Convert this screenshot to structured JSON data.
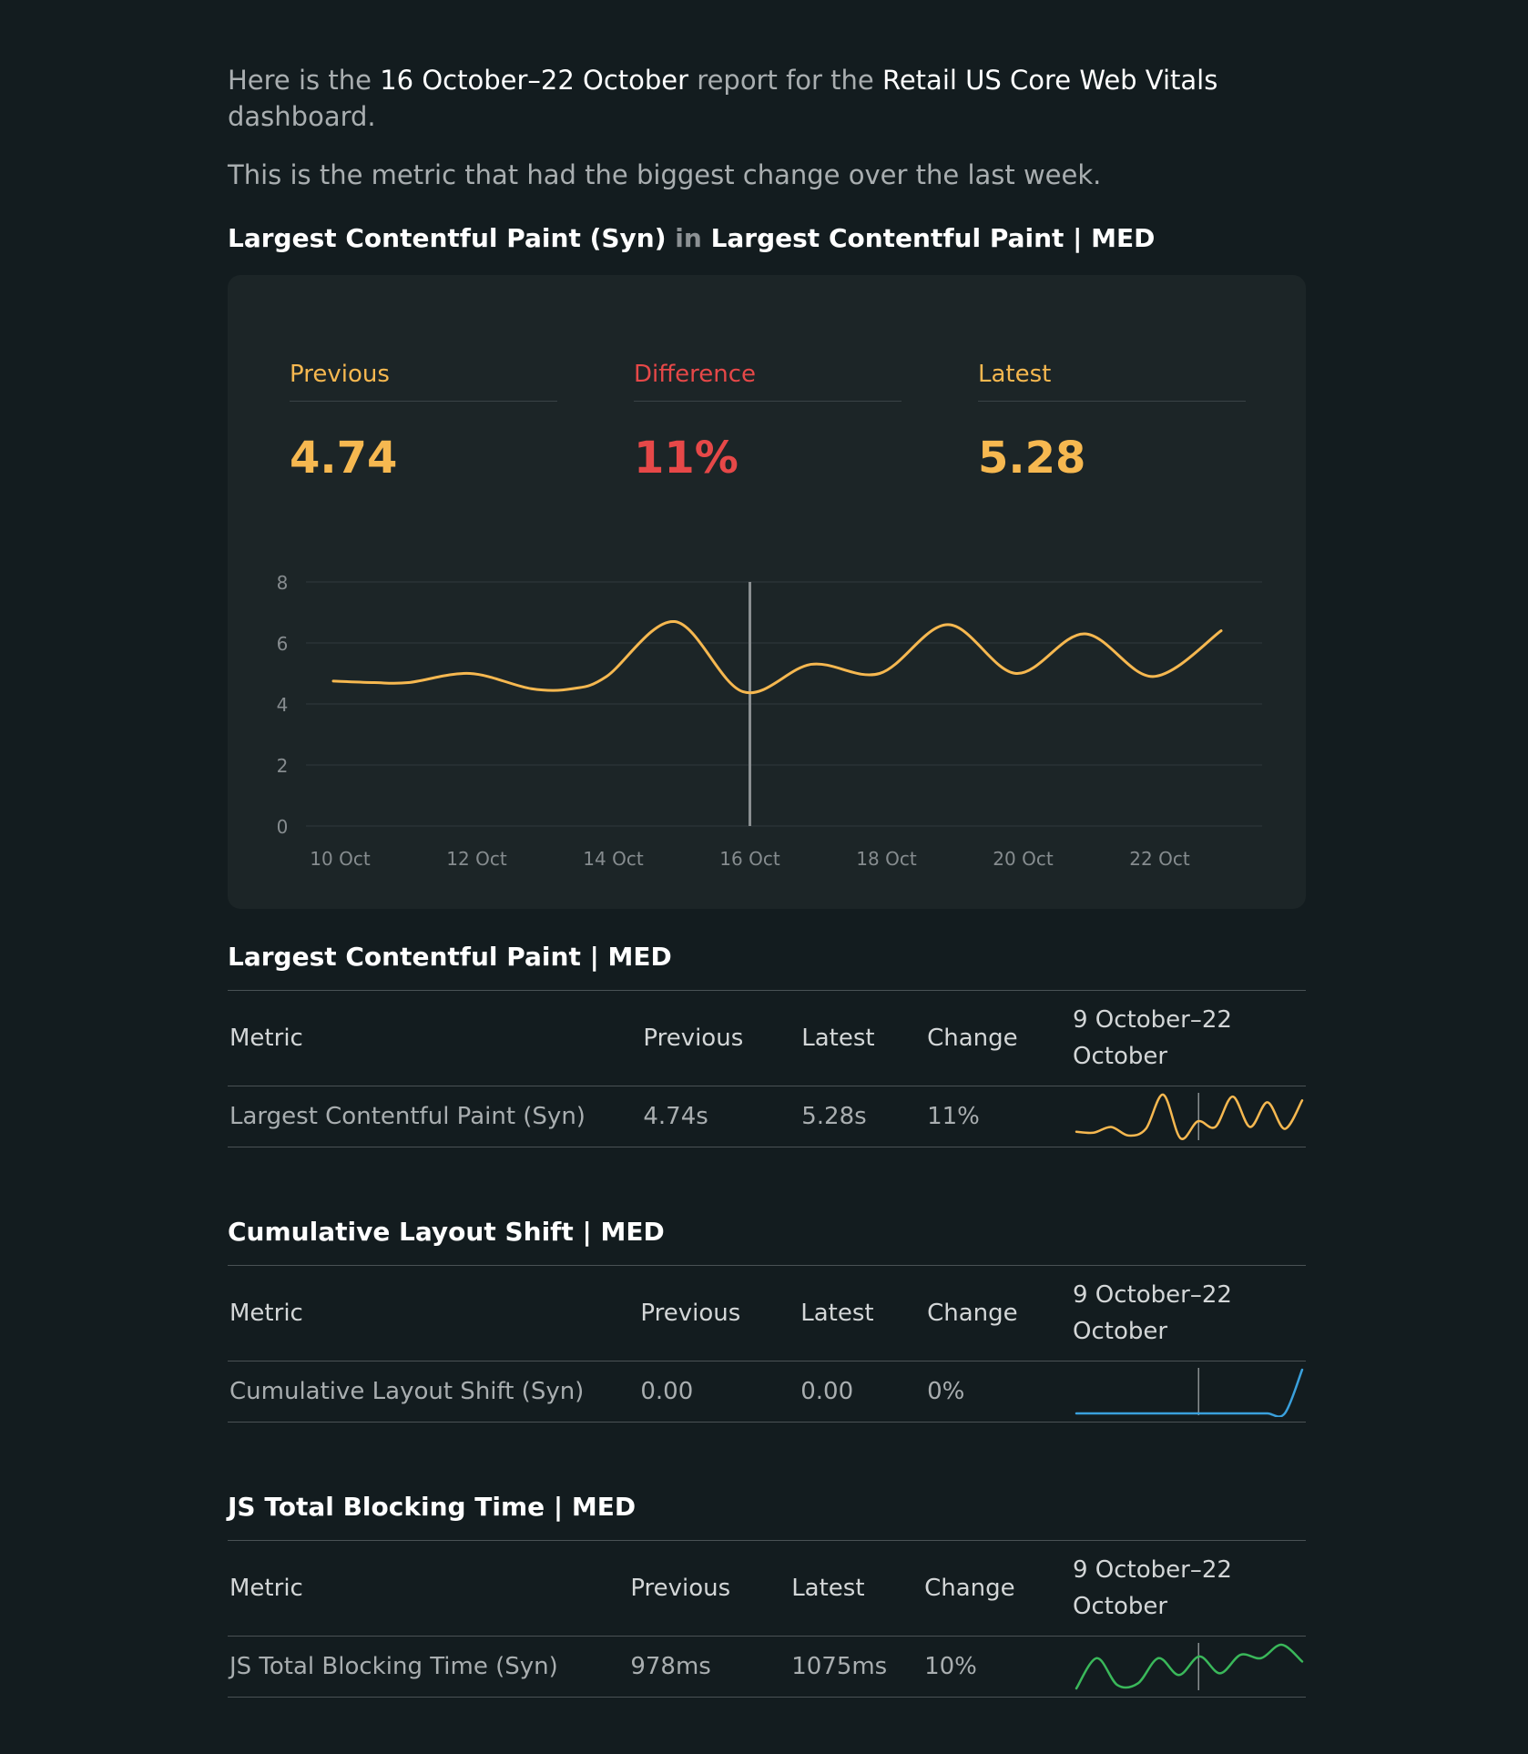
{
  "intro": {
    "p1_prefix": "Here is the",
    "date_range": "16 October–22 October",
    "p1_mid": "report for the",
    "dashboard_name": "Retail US Core Web Vitals",
    "p1_suffix": "dashboard.",
    "p2": "This is the metric that had the biggest change over the last week."
  },
  "headline": {
    "metric": "Largest Contentful Paint (Syn)",
    "connector": "in",
    "group": "Largest Contentful Paint | MED"
  },
  "summary": {
    "previous_label": "Previous",
    "previous_value": "4.74",
    "difference_label": "Difference",
    "difference_value": "11%",
    "latest_label": "Latest",
    "latest_value": "5.28"
  },
  "colors": {
    "yellow": "#f6b850",
    "red": "#e64848",
    "blue": "#3aa0dc",
    "green": "#3ab85a"
  },
  "chart_data": {
    "type": "line",
    "title": "",
    "xlabel": "",
    "ylabel": "",
    "x_ticks": [
      "10 Oct",
      "12 Oct",
      "14 Oct",
      "16 Oct",
      "18 Oct",
      "20 Oct",
      "22 Oct"
    ],
    "y_ticks": [
      0,
      2,
      4,
      6,
      8
    ],
    "ylim": [
      0,
      8
    ],
    "grid": true,
    "divider_date": "16 Oct",
    "series": [
      {
        "color": "#f6b850",
        "x": [
          "9 Oct",
          "10 Oct",
          "11 Oct",
          "12 Oct",
          "13 Oct",
          "14 Oct",
          "15 Oct",
          "16 Oct",
          "17 Oct",
          "18 Oct",
          "19 Oct",
          "20 Oct",
          "21 Oct",
          "22 Oct",
          "23 Oct"
        ],
        "points": [
          {
            "x": 9.9,
            "y": 4.75
          },
          {
            "x": 10.5,
            "y": 4.7
          },
          {
            "x": 11.0,
            "y": 4.7
          },
          {
            "x": 11.9,
            "y": 5.0
          },
          {
            "x": 12.8,
            "y": 4.5
          },
          {
            "x": 13.4,
            "y": 4.5
          },
          {
            "x": 13.9,
            "y": 4.9
          },
          {
            "x": 14.9,
            "y": 6.7
          },
          {
            "x": 15.9,
            "y": 4.4
          },
          {
            "x": 16.9,
            "y": 5.3
          },
          {
            "x": 17.9,
            "y": 5.0
          },
          {
            "x": 18.9,
            "y": 6.6
          },
          {
            "x": 19.9,
            "y": 5.0
          },
          {
            "x": 20.9,
            "y": 6.3
          },
          {
            "x": 21.9,
            "y": 4.9
          },
          {
            "x": 22.9,
            "y": 6.4
          }
        ]
      }
    ]
  },
  "sections": [
    {
      "title": "Largest Contentful Paint | MED",
      "headers": {
        "metric": "Metric",
        "previous": "Previous",
        "latest": "Latest",
        "change": "Change",
        "range": "9 October–22 October"
      },
      "row": {
        "metric": "Largest Contentful Paint (Syn)",
        "previous": "4.74s",
        "latest": "5.28s",
        "change": "11%"
      },
      "sparkline": [
        4.75,
        4.7,
        5.0,
        4.55,
        4.9,
        6.7,
        4.4,
        5.3,
        5.0,
        6.6,
        5.0,
        6.3,
        4.9,
        6.4
      ]
    },
    {
      "title": "Cumulative Layout Shift | MED",
      "headers": {
        "metric": "Metric",
        "previous": "Previous",
        "latest": "Latest",
        "change": "Change",
        "range": "9 October–22 October"
      },
      "row": {
        "metric": "Cumulative Layout Shift (Syn)",
        "previous": "0.00",
        "latest": "0.00",
        "change": "0%"
      },
      "sparkline": [
        0,
        0,
        0,
        0,
        0,
        0,
        0,
        0,
        0,
        0,
        0,
        0,
        0,
        0.02
      ]
    },
    {
      "title": "JS Total Blocking Time | MED",
      "headers": {
        "metric": "Metric",
        "previous": "Previous",
        "latest": "Latest",
        "change": "Change",
        "range": "9 October–22 October"
      },
      "row": {
        "metric": "JS Total Blocking Time (Syn)",
        "previous": "978ms",
        "latest": "1075ms",
        "change": "10%"
      },
      "sparkline": [
        950,
        1040,
        960,
        965,
        1040,
        990,
        1045,
        995,
        1050,
        1040,
        1080,
        1030
      ]
    }
  ]
}
